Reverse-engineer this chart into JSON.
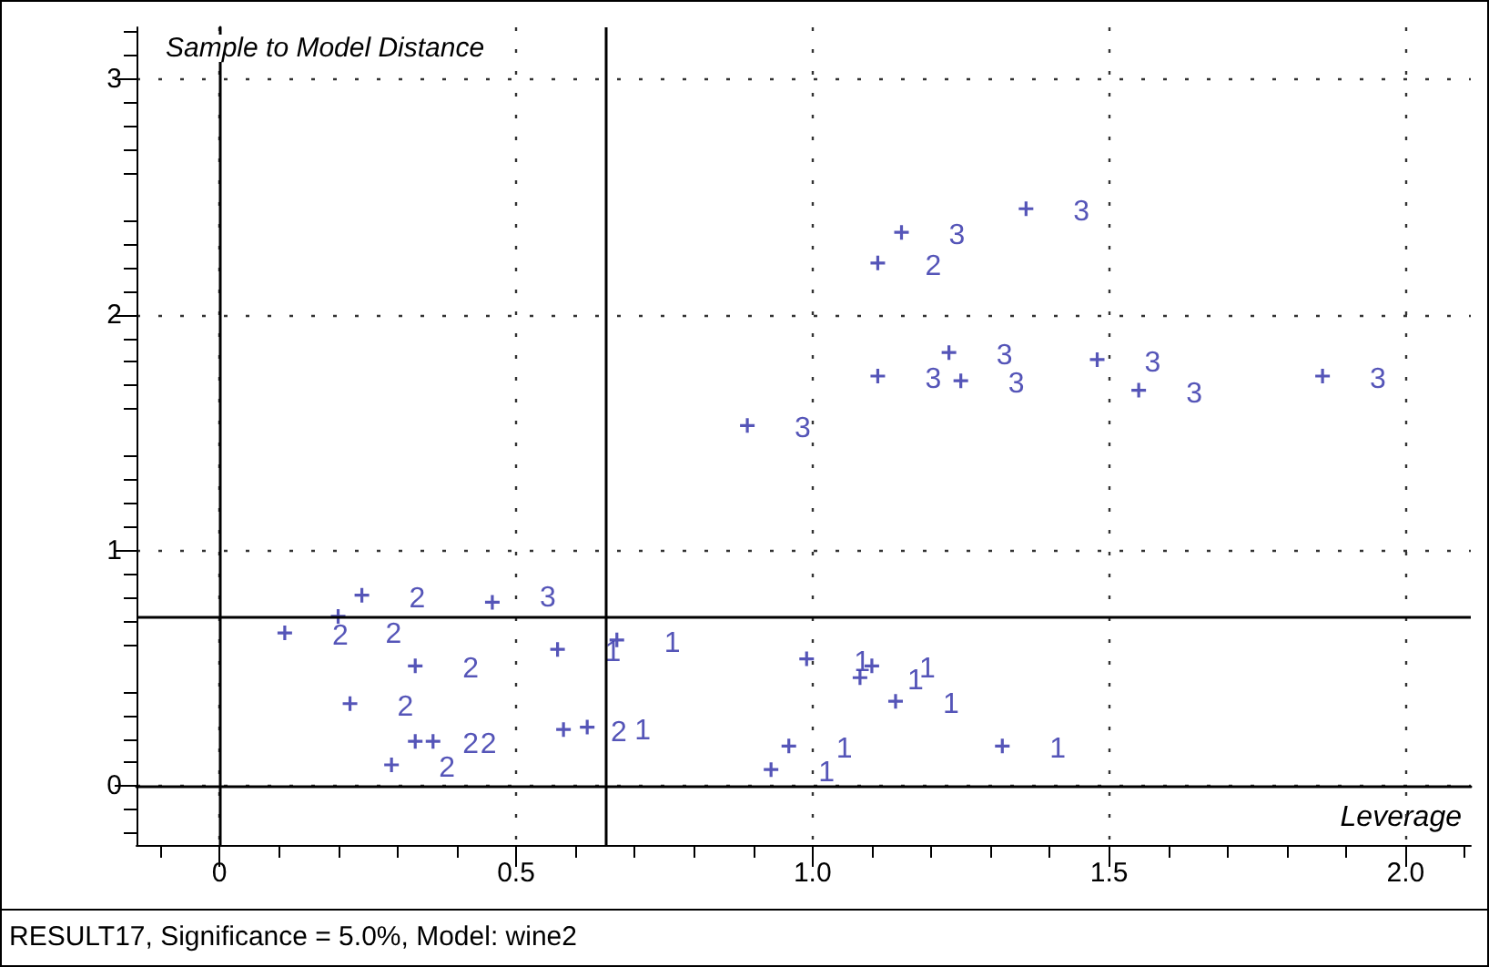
{
  "chart_data": {
    "type": "scatter",
    "xlabel": "Leverage",
    "ylabel": "Sample to Model Distance",
    "annotations": [
      "RESULT17, Significance = 5.0%, Model: wine2"
    ],
    "marker": "cross",
    "series": [
      {
        "name": "1",
        "color": "#2b2ba6",
        "x": [
          0.57,
          0.67,
          0.62,
          0.99,
          1.08,
          1.1,
          1.14,
          0.96,
          0.93,
          1.32
        ],
        "values": [
          0.58,
          0.62,
          0.25,
          0.54,
          0.46,
          0.51,
          0.36,
          0.17,
          0.07,
          0.17
        ]
      },
      {
        "name": "2",
        "color": "#2b2ba6",
        "x": [
          0.11,
          0.2,
          0.24,
          0.33,
          0.22,
          0.33,
          0.36,
          0.29,
          0.58,
          1.11
        ],
        "values": [
          0.65,
          0.72,
          0.81,
          0.51,
          0.35,
          0.19,
          0.19,
          0.09,
          0.24,
          2.22
        ]
      },
      {
        "name": "3",
        "color": "#2b2ba6",
        "x": [
          0.46,
          0.89,
          1.15,
          1.36,
          1.11,
          1.23,
          1.25,
          1.48,
          1.55,
          1.86
        ],
        "values": [
          0.78,
          1.53,
          2.35,
          2.45,
          1.74,
          1.84,
          1.72,
          1.81,
          1.68,
          1.74
        ]
      }
    ],
    "xlim": [
      -0.14,
      2.11
    ],
    "ylim": [
      -0.25,
      3.22
    ],
    "xticks": [
      0,
      0.5,
      {
        "value": 1,
        "label": "1.0"
      },
      1.5,
      {
        "value": 2,
        "label": "2.0"
      }
    ],
    "yticks": [
      0,
      1,
      2,
      3
    ],
    "grid": true,
    "ref_lines": [
      {
        "axis": "x",
        "value": 0.65,
        "color": "#000000"
      },
      {
        "axis": "y",
        "value": 0.72,
        "color": "#000000"
      }
    ]
  }
}
